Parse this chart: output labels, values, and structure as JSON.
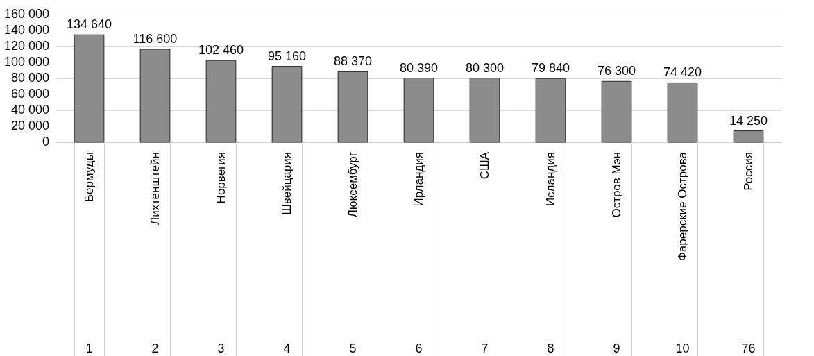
{
  "chart_data": {
    "type": "bar",
    "categories": [
      "Бермуды",
      "Лихтенштейн",
      "Норвегия",
      "Швейцария",
      "Люксембург",
      "Ирландия",
      "США",
      "Исландия",
      "Остров Мэн",
      "Фарерские Острова",
      "Россия"
    ],
    "values": [
      134640,
      116600,
      102460,
      95160,
      88370,
      80390,
      80300,
      79840,
      76300,
      74420,
      14250
    ],
    "color": "#8c8c8c",
    "ylim": [
      0,
      160000
    ],
    "yticks": [
      {
        "value": 0,
        "label": "0"
      },
      {
        "value": 20000,
        "label": "20 000"
      },
      {
        "value": 40000,
        "label": "40 000"
      },
      {
        "value": 60000,
        "label": "60 000"
      },
      {
        "value": 80000,
        "label": "80 000"
      },
      {
        "value": 100000,
        "label": "100 000"
      },
      {
        "value": 120000,
        "label": "120 000"
      },
      {
        "value": 140000,
        "label": "140 000"
      },
      {
        "value": 160000,
        "label": "160 000"
      }
    ],
    "grid": "y",
    "data_labels": true,
    "annotations": [
      "1",
      "2",
      "3",
      "4",
      "5",
      "6",
      "7",
      "8",
      "9",
      "10",
      "76"
    ]
  }
}
